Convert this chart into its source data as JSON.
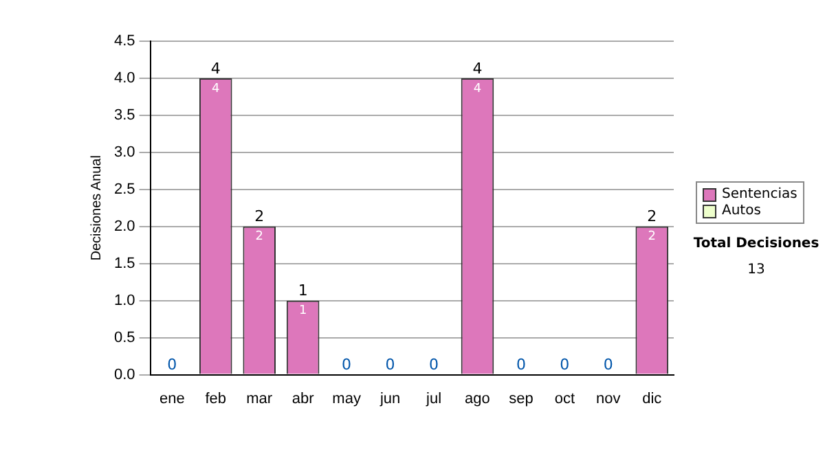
{
  "chart_data": {
    "type": "bar",
    "ylabel": "Decisiones Anual",
    "categories": [
      "ene",
      "feb",
      "mar",
      "abr",
      "may",
      "jun",
      "jul",
      "ago",
      "sep",
      "oct",
      "nov",
      "dic"
    ],
    "series": [
      {
        "name": "Sentencias",
        "color": "#dd77bb",
        "values": [
          0,
          4,
          2,
          1,
          0,
          0,
          0,
          4,
          0,
          0,
          0,
          2
        ],
        "value_labels": [
          null,
          "4",
          "2",
          "1",
          null,
          null,
          null,
          "4",
          null,
          null,
          null,
          "2"
        ]
      },
      {
        "name": "Autos",
        "color": "#eeffcc",
        "values": [
          0,
          0,
          0,
          0,
          0,
          0,
          0,
          0,
          0,
          0,
          0,
          0
        ]
      }
    ],
    "stacked": true,
    "totals": [
      "0",
      "4",
      "2",
      "1",
      "0",
      "0",
      "0",
      "4",
      "0",
      "0",
      "0",
      "2"
    ],
    "ylim": [
      0,
      4.5
    ],
    "yticks": [
      {
        "value": 0,
        "label": "0.0"
      },
      {
        "value": 0.5,
        "label": "0.5"
      },
      {
        "value": 1,
        "label": "1.0"
      },
      {
        "value": 1.5,
        "label": "1.5"
      },
      {
        "value": 2,
        "label": "2.0"
      },
      {
        "value": 2.5,
        "label": "2.5"
      },
      {
        "value": 3,
        "label": "3.0"
      },
      {
        "value": 3.5,
        "label": "3.5"
      },
      {
        "value": 4,
        "label": "4.0"
      },
      {
        "value": 4.5,
        "label": "4.5"
      }
    ],
    "grid": "y",
    "legend": "right",
    "annotations": [
      "Total Decisiones",
      "13"
    ]
  }
}
